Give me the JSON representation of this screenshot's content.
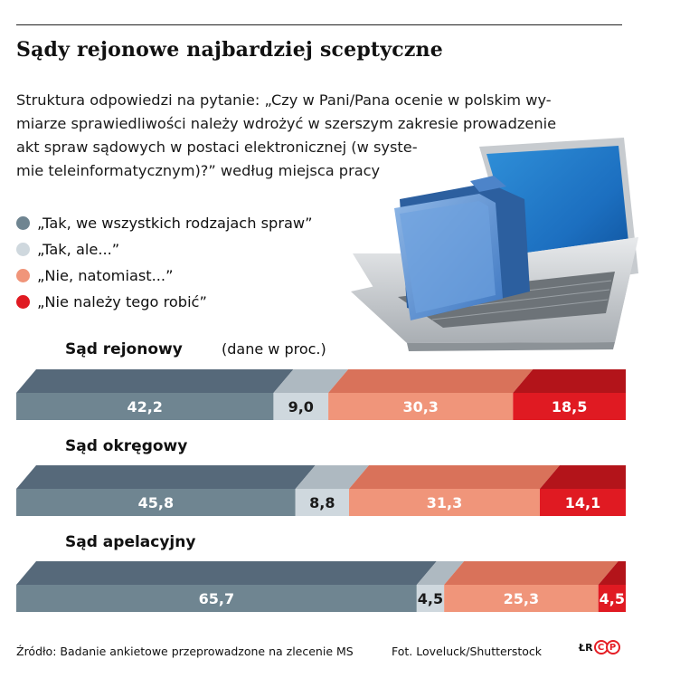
{
  "title": "Sądy rejonowe najbardziej sceptyczne",
  "subtitle_lines": [
    "Struktura odpowiedzi na pytanie: „Czy w Pani/Pana ocenie w polskim wy-",
    "miarze sprawiedliwości należy wdrożyć w szerszym zakresie prowadzenie",
    "akt spraw sądowych w postaci elektronicznej (w syste-",
    "mie teleinformatycznym)?” według miejsca pracy"
  ],
  "legend": [
    {
      "label": "„Tak, we wszystkich rodzajach spraw”",
      "color": "#6f8591"
    },
    {
      "label": "„Tak, ale...”",
      "color": "#cfd8de"
    },
    {
      "label": "„Nie, natomiast...”",
      "color": "#f0957a"
    },
    {
      "label": "„Nie należy tego robić”",
      "color": "#e01a22"
    }
  ],
  "unit_note": "(dane w proc.)",
  "chart_data": [
    {
      "type": "bar",
      "orientation": "horizontal-stacked",
      "title": "Sąd rejonowy",
      "series": [
        {
          "name": "„Tak, we wszystkich rodzajach spraw”",
          "value": 42.2,
          "label": "42,2",
          "color": "#6f8591"
        },
        {
          "name": "„Tak, ale...”",
          "value": 9.0,
          "label": "9,0",
          "color": "#cfd8de"
        },
        {
          "name": "„Nie, natomiast...”",
          "value": 30.3,
          "label": "30,3",
          "color": "#f0957a"
        },
        {
          "name": "„Nie należy tego robić”",
          "value": 18.5,
          "label": "18,5",
          "color": "#e01a22"
        }
      ]
    },
    {
      "type": "bar",
      "orientation": "horizontal-stacked",
      "title": "Sąd okręgowy",
      "series": [
        {
          "name": "„Tak, we wszystkich rodzajach spraw”",
          "value": 45.8,
          "label": "45,8",
          "color": "#6f8591"
        },
        {
          "name": "„Tak, ale...”",
          "value": 8.8,
          "label": "8,8",
          "color": "#cfd8de"
        },
        {
          "name": "„Nie, natomiast...”",
          "value": 31.3,
          "label": "31,3",
          "color": "#f0957a"
        },
        {
          "name": "„Nie należy tego robić”",
          "value": 14.1,
          "label": "14,1",
          "color": "#e01a22"
        }
      ]
    },
    {
      "type": "bar",
      "orientation": "horizontal-stacked",
      "title": "Sąd apelacyjny",
      "series": [
        {
          "name": "„Tak, we wszystkich rodzajach spraw”",
          "value": 65.7,
          "label": "65,7",
          "color": "#6f8591"
        },
        {
          "name": "„Tak, ale...”",
          "value": 4.5,
          "label": "4,5",
          "color": "#cfd8de"
        },
        {
          "name": "„Nie, natomiast...”",
          "value": 25.3,
          "label": "25,3",
          "color": "#f0957a"
        },
        {
          "name": "„Nie należy tego robić”",
          "value": 4.5,
          "label": "4,5",
          "color": "#e01a22"
        }
      ]
    }
  ],
  "footer": {
    "source": "Źródło: Badanie ankietowe przeprowadzone na zlecenie MS",
    "photo": "Fot. Loveluck/Shutterstock",
    "badge": "ŁR",
    "badge_letters": [
      "C",
      "P"
    ]
  }
}
